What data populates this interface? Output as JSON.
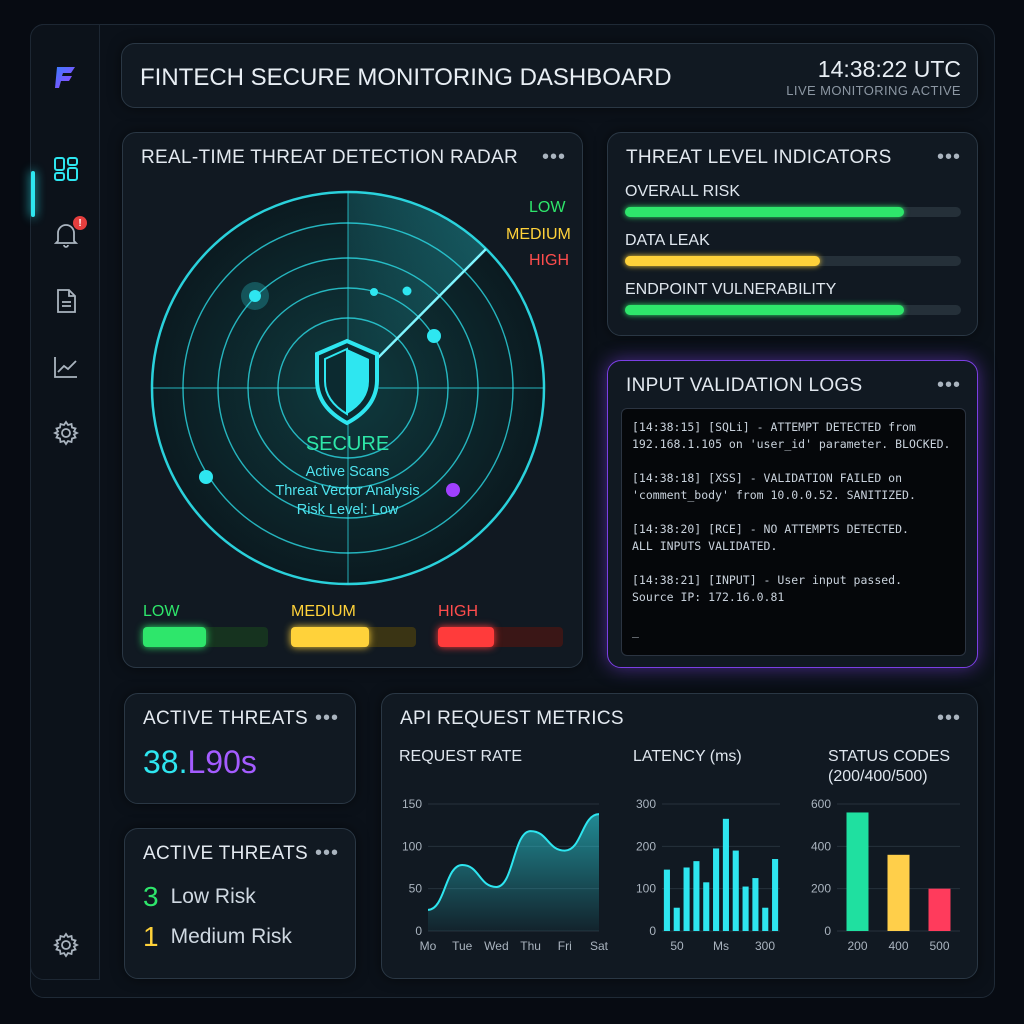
{
  "header": {
    "title": "FINTECH SECURE MONITORING DASHBOARD",
    "time": "14:38:22 UTC",
    "status": "LIVE MONITORING ACTIVE"
  },
  "sidebar": {
    "logo": "F",
    "badge": "!",
    "items": [
      "dashboard-icon",
      "bell-icon",
      "document-icon",
      "chart-icon",
      "gear-icon"
    ],
    "bottom_item": "gear-icon"
  },
  "radar": {
    "title": "REAL-TIME THREAT DETECTION RADAR",
    "legend": [
      "LOW",
      "MEDIUM",
      "HIGH"
    ],
    "status": "SECURE",
    "lines": [
      "Active Scans",
      "Threat Vector Analysis",
      "Risk Level: Low"
    ],
    "levels": [
      {
        "label": "LOW",
        "fill": 0.5,
        "color": "#2ee66b"
      },
      {
        "label": "MEDIUM",
        "fill": 0.62,
        "color": "#ffd23a"
      },
      {
        "label": "HIGH",
        "fill": 0.45,
        "color": "#ff3b3b"
      }
    ]
  },
  "threat_levels": {
    "title": "THREAT LEVEL INDICATORS",
    "items": [
      {
        "label": "OVERALL RISK",
        "value": 0.83,
        "color": "#2ee66b"
      },
      {
        "label": "DATA LEAK",
        "value": 0.58,
        "color": "#ffd23a"
      },
      {
        "label": "ENDPOINT VULNERABILITY",
        "value": 0.83,
        "color": "#2ee66b"
      }
    ]
  },
  "logs": {
    "title": "INPUT VALIDATION LOGS",
    "entries": [
      "[14:38:15] [SQLi] - ATTEMPT DETECTED from\n192.168.1.105 on 'user_id' parameter. BLOCKED.",
      "[14:38:18] [XSS] - VALIDATION FAILED on\n'comment_body' from 10.0.0.52. SANITIZED.",
      "[14:38:20] [RCE] - NO ATTEMPTS DETECTED.\nALL INPUTS VALIDATED.",
      "[14:38:21] [INPUT] - User input passed.\nSource IP: 172.16.0.81"
    ],
    "cursor": "_"
  },
  "active_threats_1": {
    "title": "ACTIVE THREATS",
    "value_a": "38.",
    "value_b": "L90s"
  },
  "active_threats_2": {
    "title": "ACTIVE THREATS",
    "rows": [
      {
        "count": "3",
        "label": "Low Risk",
        "color": "#2ee66b"
      },
      {
        "count": "1",
        "label": "Medium Risk",
        "color": "#ffd23a"
      }
    ]
  },
  "api": {
    "title": "API REQUEST METRICS",
    "request_rate_title": "REQUEST RATE",
    "latency_title": "LATENCY (ms)",
    "status_title_1": "STATUS CODES",
    "status_title_2": "(200/400/500)"
  },
  "chart_data": [
    {
      "type": "area",
      "title": "REQUEST RATE",
      "categories": [
        "Mo",
        "Tue",
        "Wed",
        "Thu",
        "Fri",
        "Sat"
      ],
      "values": [
        25,
        78,
        52,
        118,
        95,
        138
      ],
      "ylim": [
        0,
        150
      ],
      "yticks": [
        0,
        50,
        100,
        150
      ]
    },
    {
      "type": "bar",
      "title": "LATENCY (ms)",
      "x_tick_labels": [
        "50",
        "Ms",
        "300"
      ],
      "values": [
        145,
        55,
        150,
        165,
        115,
        195,
        265,
        190,
        105,
        125,
        55,
        170
      ],
      "ylim": [
        0,
        300
      ],
      "yticks": [
        0,
        100,
        200,
        300
      ]
    },
    {
      "type": "bar",
      "title": "STATUS CODES (200/400/500)",
      "categories": [
        "200",
        "400",
        "500"
      ],
      "values": [
        560,
        360,
        200
      ],
      "colors": [
        "#1fe0a0",
        "#ffcf4a",
        "#ff3b5c"
      ],
      "ylim": [
        0,
        600
      ],
      "yticks": [
        0,
        200,
        400,
        600
      ]
    }
  ]
}
